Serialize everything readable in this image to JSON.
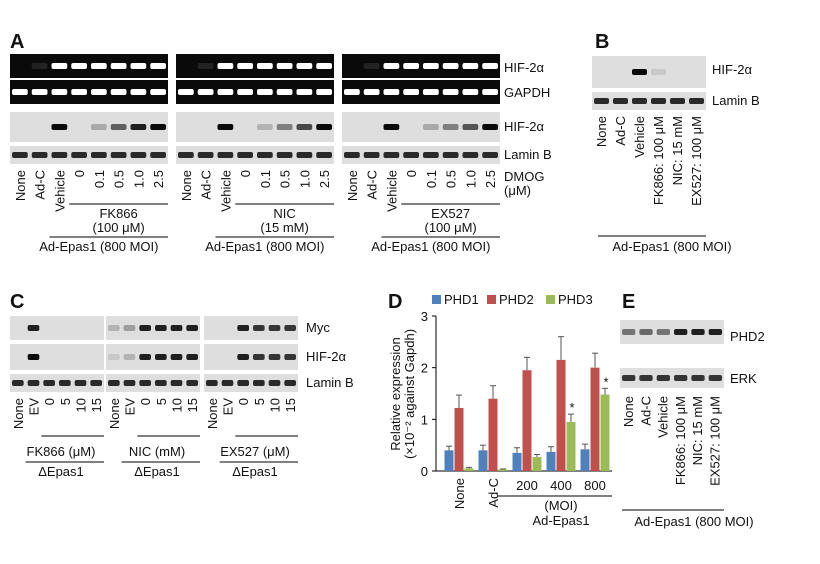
{
  "panels": {
    "A": {
      "label": "A",
      "gel_labels": [
        "HIF-2α",
        "GAPDH"
      ],
      "blot_labels": [
        "HIF-2α",
        "Lamin B"
      ],
      "lanes": [
        "None",
        "Ad-C",
        "Vehicle",
        "0",
        "0.1",
        "0.5",
        "1.0",
        "2.5"
      ],
      "treatment": [
        "DMOG",
        "(μM)"
      ],
      "groups": [
        {
          "drug": "FK866",
          "conc": "(100 μM)"
        },
        {
          "drug": "NIC",
          "conc": "(15 mM)"
        },
        {
          "drug": "EX527",
          "conc": "(100 μM)"
        }
      ],
      "vector": "Ad-Epas1 (800 MOI)"
    },
    "B": {
      "label": "B",
      "blot_labels": [
        "HIF-2α",
        "Lamin B"
      ],
      "lanes": [
        "None",
        "Ad-C",
        "Vehicle",
        "FK866: 100 μM",
        "NIC: 15 mM",
        "EX527: 100 μM"
      ],
      "vector": "Ad-Epas1 (800 MOI)"
    },
    "C": {
      "label": "C",
      "blot_labels": [
        "Myc",
        "HIF-2α",
        "Lamin B"
      ],
      "lanes": [
        "None",
        "EV",
        "0",
        "5",
        "10",
        "15"
      ],
      "groups": [
        "FK866 (μM)",
        "NIC (mM)",
        "EX527 (μM)"
      ],
      "vector": "ΔEpas1"
    },
    "E": {
      "label": "E",
      "blot_labels": [
        "PHD2",
        "ERK"
      ],
      "lanes": [
        "None",
        "Ad-C",
        "Vehicle",
        "FK866: 100 μM",
        "NIC: 15 mM",
        "EX527: 100 μM"
      ],
      "vector": "Ad-Epas1 (800 MOI)"
    }
  },
  "chart_data": {
    "type": "bar",
    "label": "D",
    "y_label": [
      "Relative expression",
      "(×10⁻² against Gapdh)"
    ],
    "categories": [
      "None",
      "Ad-C",
      "200",
      "400",
      "800"
    ],
    "x_unit": "(MOI)",
    "x_group": "Ad-Epas1",
    "series": [
      {
        "name": "PHD1",
        "color": "#4f81bd",
        "values": [
          0.4,
          0.4,
          0.35,
          0.37,
          0.42
        ],
        "errors": [
          0.08,
          0.1,
          0.1,
          0.1,
          0.1
        ]
      },
      {
        "name": "PHD2",
        "color": "#c0504d",
        "values": [
          1.22,
          1.4,
          1.95,
          2.15,
          2.0
        ],
        "errors": [
          0.25,
          0.25,
          0.25,
          0.45,
          0.28
        ]
      },
      {
        "name": "PHD3",
        "color": "#9bbb59",
        "values": [
          0.05,
          0.03,
          0.27,
          0.95,
          1.48
        ],
        "errors": [
          0.02,
          0.01,
          0.05,
          0.15,
          0.12
        ]
      }
    ],
    "annotations": [
      "*",
      "*"
    ],
    "ylim": [
      0,
      3
    ],
    "yticks": [
      0,
      1,
      2,
      3
    ]
  }
}
